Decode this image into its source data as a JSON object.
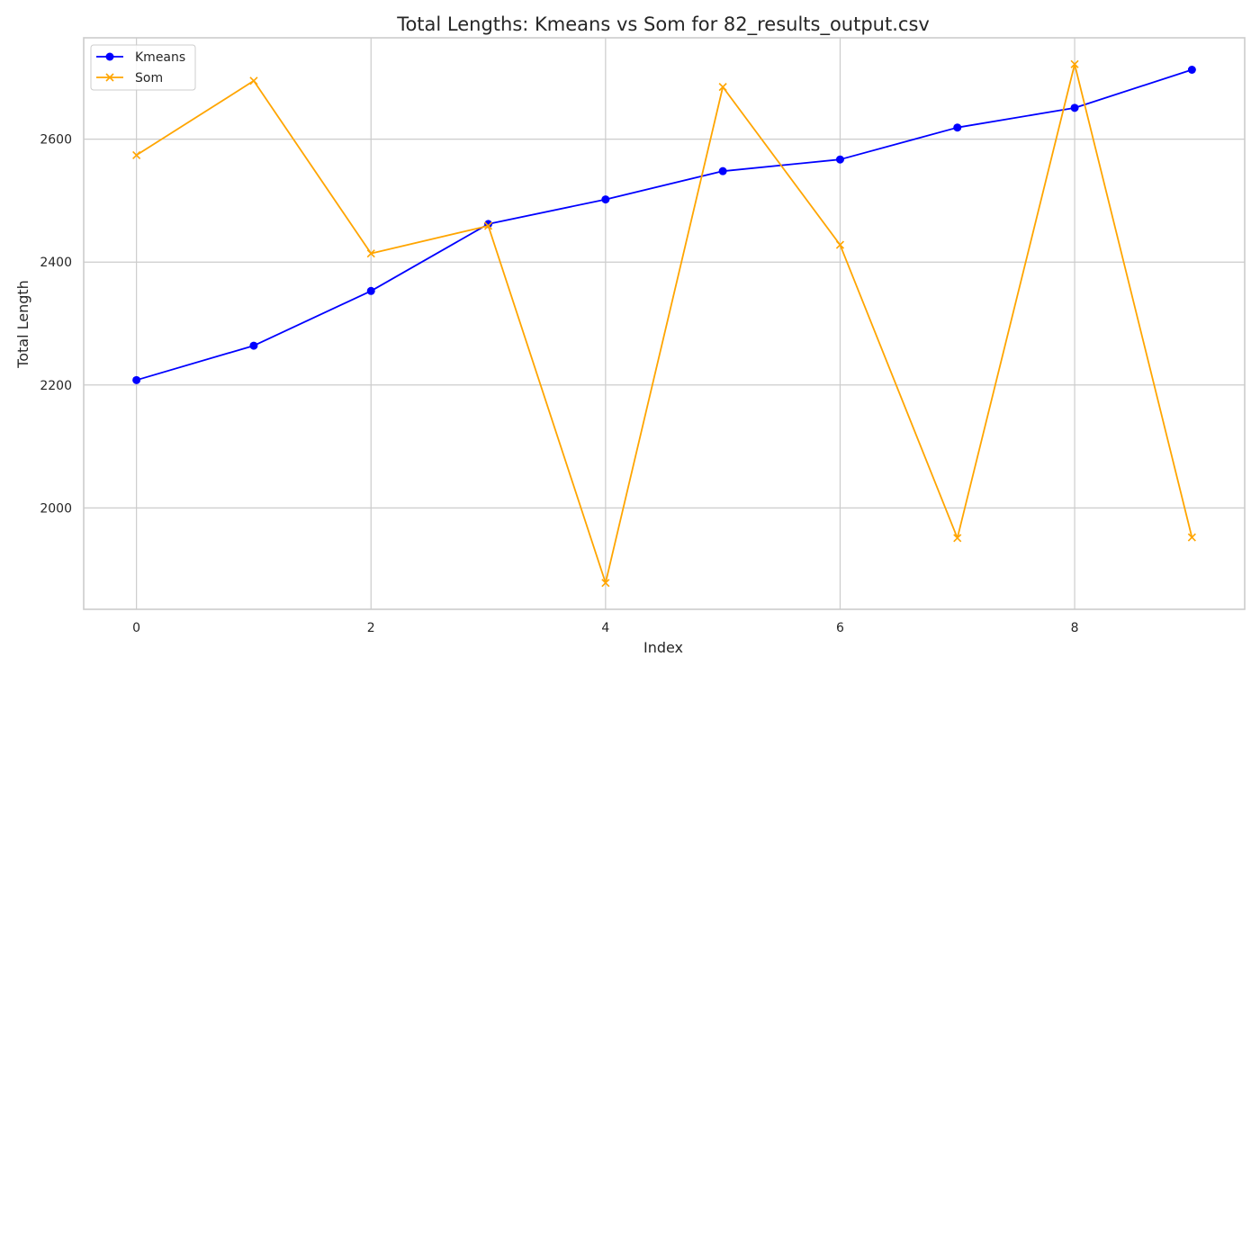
{
  "chart_data": {
    "type": "line",
    "title": "Total Lengths: Kmeans vs Som  for 82_results_output.csv",
    "xlabel": "Index",
    "ylabel": "Total Length",
    "x": [
      0,
      1,
      2,
      3,
      4,
      5,
      6,
      7,
      8,
      9
    ],
    "xlim": [
      -0.45,
      9.45
    ],
    "ylim": [
      1835,
      2765
    ],
    "xticks": [
      0,
      2,
      4,
      6,
      8
    ],
    "xtick_labels": [
      "0",
      "2",
      "4",
      "6",
      "8"
    ],
    "yticks": [
      2000,
      2200,
      2400,
      2600
    ],
    "ytick_labels": [
      "2000",
      "2200",
      "2400",
      "2600"
    ],
    "grid": true,
    "legend_position": "upper-left",
    "series": [
      {
        "name": "Kmeans",
        "color": "#0000ff",
        "marker": "circle",
        "values": [
          2208,
          2264,
          2353,
          2462,
          2502,
          2548,
          2567,
          2619,
          2651,
          2713
        ]
      },
      {
        "name": "Som",
        "color": "#ffa500",
        "marker": "x",
        "values": [
          2574,
          2695,
          2414,
          2459,
          1878,
          2685,
          2428,
          1951,
          2722,
          1952
        ]
      }
    ]
  }
}
